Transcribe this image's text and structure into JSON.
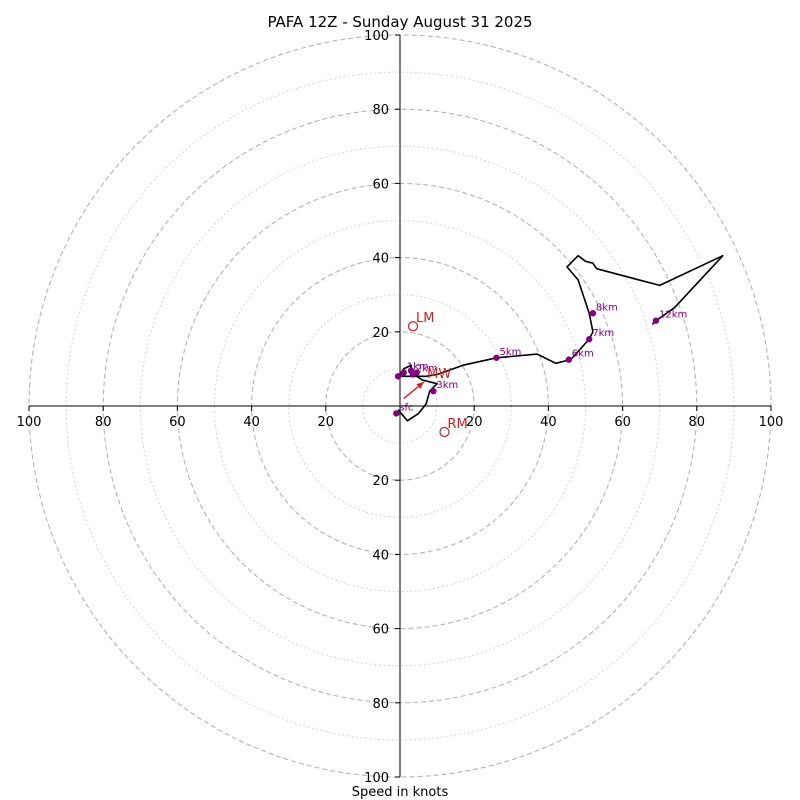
{
  "chart_data": {
    "type": "hodograph",
    "title": "PAFA 12Z - Sunday August 31 2025",
    "xlabel": "Speed in knots",
    "range": 100,
    "major_rings": [
      20,
      40,
      60,
      80,
      100
    ],
    "minor_rings": [
      10,
      30,
      50,
      70,
      90
    ],
    "grid": true,
    "tick_labels": {
      "x": [
        "100",
        "80",
        "60",
        "40",
        "20",
        "20",
        "40",
        "60",
        "80",
        "100"
      ],
      "y_top": [
        "20",
        "40",
        "60",
        "80",
        "100"
      ],
      "y_bottom": [
        "20",
        "40",
        "60",
        "80",
        "100"
      ]
    },
    "trace": [
      [
        -0.5,
        -1.0
      ],
      [
        2,
        -4
      ],
      [
        5,
        -2
      ],
      [
        7,
        0.5
      ],
      [
        8,
        4
      ],
      [
        10,
        6
      ],
      [
        6,
        7
      ],
      [
        3,
        9
      ],
      [
        3,
        10
      ],
      [
        3,
        11
      ],
      [
        1,
        10
      ],
      [
        0,
        8
      ],
      [
        3,
        8
      ],
      [
        7,
        8
      ],
      [
        10,
        8.5
      ],
      [
        17,
        11
      ],
      [
        26,
        13
      ],
      [
        37,
        14
      ],
      [
        42,
        11.5
      ],
      [
        46,
        12.5
      ],
      [
        51,
        18
      ],
      [
        52,
        20
      ],
      [
        51,
        25
      ],
      [
        48,
        34
      ],
      [
        45,
        37.5
      ],
      [
        48,
        40.5
      ],
      [
        50,
        39
      ],
      [
        52,
        38.5
      ],
      [
        53,
        37
      ],
      [
        70,
        32.5
      ],
      [
        87,
        40.5
      ],
      [
        74,
        26.5
      ],
      [
        69,
        23
      ],
      [
        68,
        22
      ]
    ],
    "trace_color": "#000000",
    "height_markers": [
      {
        "label": "sfc",
        "u": -1,
        "v": -2
      },
      {
        "label": "1km",
        "u": 1,
        "v": 9
      },
      {
        "label": "2km",
        "u": 3.5,
        "v": 8.5
      },
      {
        "label": "3km",
        "u": 9,
        "v": 4
      },
      {
        "label": "",
        "u": 4.5,
        "v": 9
      },
      {
        "label": "",
        "u": 3.0,
        "v": 9.5
      },
      {
        "label": "5km",
        "u": 26,
        "v": 13
      },
      {
        "label": "6km",
        "u": 45.5,
        "v": 12.5
      },
      {
        "label": "7km",
        "u": 51,
        "v": 18
      },
      {
        "label": "8km",
        "u": 52,
        "v": 25
      },
      {
        "label": "12km",
        "u": 69,
        "v": 23
      },
      {
        "label": "",
        "u": -0.5,
        "v": 8
      }
    ],
    "marker_color": "#800080",
    "storm_motions": [
      {
        "label": "LM",
        "u": 3.5,
        "v": 21.5
      },
      {
        "label": "RM",
        "u": 12,
        "v": -7
      },
      {
        "label": "MW",
        "u": 6.5,
        "v": 6.5
      }
    ],
    "storm_color": "#cc2222",
    "shear_arrow": {
      "from": [
        1,
        2
      ],
      "to": [
        6.5,
        6.5
      ]
    }
  }
}
